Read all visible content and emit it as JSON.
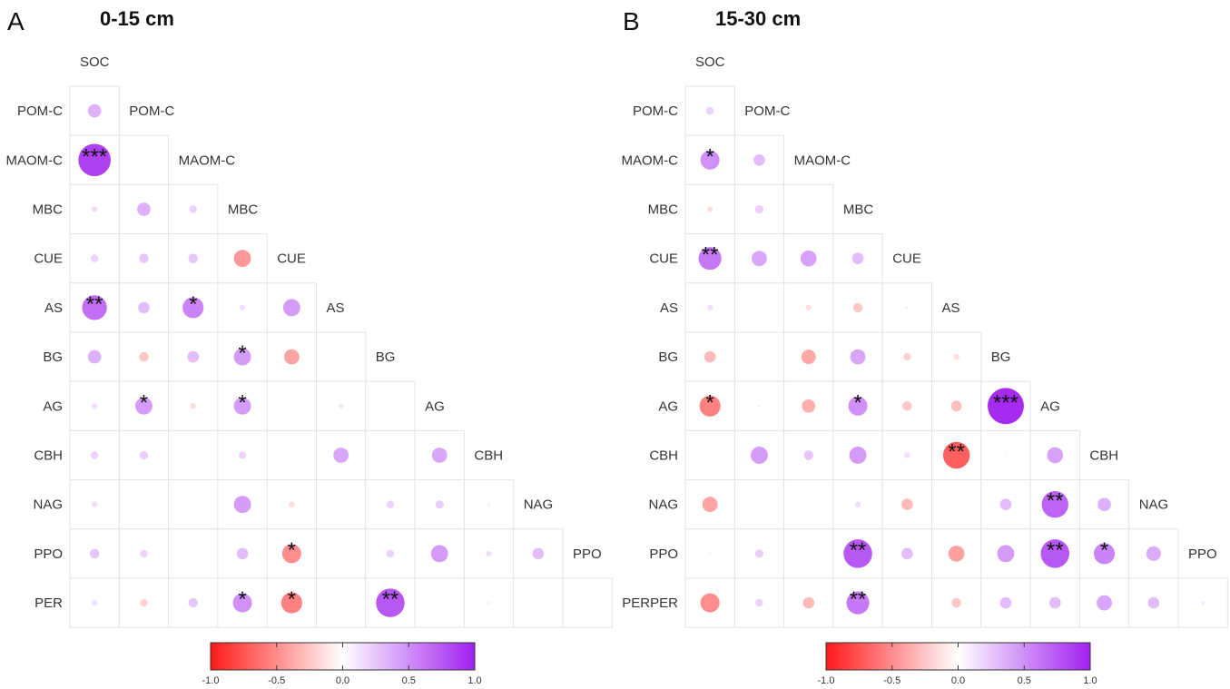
{
  "chart_data": [
    {
      "type": "heatmap",
      "panel": "A",
      "title": "0-15 cm",
      "variables": [
        "SOC",
        "POM-C",
        "MAOM-C",
        "MBC",
        "CUE",
        "AS",
        "BG",
        "AG",
        "CBH",
        "NAG",
        "PPO",
        "PER"
      ],
      "encoding": "lower-triangle correlation matrix; circle size and color show correlation r, stars show significance",
      "color_scale": {
        "min": -1.0,
        "max": 1.0,
        "ticks": [
          "-1.0",
          "-0.5",
          "0.0",
          "0.5",
          "1.0"
        ],
        "negative_color": "#ff1a1a",
        "zero_color": "#ffffff",
        "positive_color": "#a020f0"
      },
      "cells": [
        {
          "row": "POM-C",
          "col": "SOC",
          "r": 0.35,
          "sig": ""
        },
        {
          "row": "MAOM-C",
          "col": "SOC",
          "r": 0.85,
          "sig": "***"
        },
        {
          "row": "MAOM-C",
          "col": "POM-C",
          "r": 0.05,
          "sig": ""
        },
        {
          "row": "MBC",
          "col": "SOC",
          "r": 0.15,
          "sig": ""
        },
        {
          "row": "MBC",
          "col": "POM-C",
          "r": 0.35,
          "sig": ""
        },
        {
          "row": "MBC",
          "col": "MAOM-C",
          "r": 0.2,
          "sig": ""
        },
        {
          "row": "CUE",
          "col": "SOC",
          "r": 0.2,
          "sig": ""
        },
        {
          "row": "CUE",
          "col": "POM-C",
          "r": 0.25,
          "sig": ""
        },
        {
          "row": "CUE",
          "col": "MAOM-C",
          "r": 0.25,
          "sig": ""
        },
        {
          "row": "CUE",
          "col": "MBC",
          "r": -0.45,
          "sig": ""
        },
        {
          "row": "AS",
          "col": "SOC",
          "r": 0.65,
          "sig": "**"
        },
        {
          "row": "AS",
          "col": "POM-C",
          "r": 0.3,
          "sig": ""
        },
        {
          "row": "AS",
          "col": "MAOM-C",
          "r": 0.55,
          "sig": "*"
        },
        {
          "row": "AS",
          "col": "MBC",
          "r": 0.15,
          "sig": ""
        },
        {
          "row": "AS",
          "col": "CUE",
          "r": 0.45,
          "sig": ""
        },
        {
          "row": "BG",
          "col": "SOC",
          "r": 0.35,
          "sig": ""
        },
        {
          "row": "BG",
          "col": "POM-C",
          "r": -0.25,
          "sig": ""
        },
        {
          "row": "BG",
          "col": "MAOM-C",
          "r": 0.3,
          "sig": ""
        },
        {
          "row": "BG",
          "col": "MBC",
          "r": 0.45,
          "sig": "*"
        },
        {
          "row": "BG",
          "col": "CUE",
          "r": -0.4,
          "sig": ""
        },
        {
          "row": "AG",
          "col": "SOC",
          "r": 0.15,
          "sig": ""
        },
        {
          "row": "AG",
          "col": "POM-C",
          "r": 0.45,
          "sig": "*"
        },
        {
          "row": "AG",
          "col": "MAOM-C",
          "r": -0.15,
          "sig": ""
        },
        {
          "row": "AG",
          "col": "MBC",
          "r": 0.45,
          "sig": "*"
        },
        {
          "row": "AG",
          "col": "AS",
          "r": 0.12,
          "sig": ""
        },
        {
          "row": "AG",
          "col": "BG",
          "r": 0.05,
          "sig": ""
        },
        {
          "row": "CBH",
          "col": "SOC",
          "r": 0.2,
          "sig": ""
        },
        {
          "row": "CBH",
          "col": "POM-C",
          "r": 0.22,
          "sig": ""
        },
        {
          "row": "CBH",
          "col": "MBC",
          "r": 0.2,
          "sig": ""
        },
        {
          "row": "CBH",
          "col": "AS",
          "r": 0.4,
          "sig": ""
        },
        {
          "row": "CBH",
          "col": "AG",
          "r": 0.4,
          "sig": ""
        },
        {
          "row": "NAG",
          "col": "SOC",
          "r": 0.15,
          "sig": ""
        },
        {
          "row": "NAG",
          "col": "MBC",
          "r": 0.45,
          "sig": ""
        },
        {
          "row": "NAG",
          "col": "CUE",
          "r": -0.15,
          "sig": ""
        },
        {
          "row": "NAG",
          "col": "AS",
          "r": 0.05,
          "sig": ""
        },
        {
          "row": "NAG",
          "col": "BG",
          "r": 0.2,
          "sig": ""
        },
        {
          "row": "NAG",
          "col": "AG",
          "r": 0.22,
          "sig": ""
        },
        {
          "row": "NAG",
          "col": "CBH",
          "r": 0.08,
          "sig": ""
        },
        {
          "row": "PPO",
          "col": "SOC",
          "r": 0.25,
          "sig": ""
        },
        {
          "row": "PPO",
          "col": "POM-C",
          "r": 0.2,
          "sig": ""
        },
        {
          "row": "PPO",
          "col": "MAOM-C",
          "r": 0.05,
          "sig": ""
        },
        {
          "row": "PPO",
          "col": "MBC",
          "r": 0.3,
          "sig": ""
        },
        {
          "row": "PPO",
          "col": "CUE",
          "r": -0.5,
          "sig": "*"
        },
        {
          "row": "PPO",
          "col": "BG",
          "r": 0.2,
          "sig": ""
        },
        {
          "row": "PPO",
          "col": "AG",
          "r": 0.45,
          "sig": ""
        },
        {
          "row": "PPO",
          "col": "CBH",
          "r": 0.15,
          "sig": ""
        },
        {
          "row": "PPO",
          "col": "NAG",
          "r": 0.3,
          "sig": ""
        },
        {
          "row": "PER",
          "col": "SOC",
          "r": 0.15,
          "sig": ""
        },
        {
          "row": "PER",
          "col": "POM-C",
          "r": -0.2,
          "sig": ""
        },
        {
          "row": "PER",
          "col": "MAOM-C",
          "r": 0.25,
          "sig": ""
        },
        {
          "row": "PER",
          "col": "MBC",
          "r": 0.5,
          "sig": "*"
        },
        {
          "row": "PER",
          "col": "CUE",
          "r": -0.55,
          "sig": "*"
        },
        {
          "row": "PER",
          "col": "BG",
          "r": 0.75,
          "sig": "**"
        },
        {
          "row": "PER",
          "col": "CBH",
          "r": 0.08,
          "sig": ""
        },
        {
          "row": "PER",
          "col": "NAG",
          "r": 0.05,
          "sig": ""
        },
        {
          "row": "PER",
          "col": "PPO",
          "r": 0.03,
          "sig": ""
        }
      ]
    },
    {
      "type": "heatmap",
      "panel": "B",
      "title": "15-30 cm",
      "variables": [
        "SOC",
        "POM-C",
        "MAOM-C",
        "MBC",
        "CUE",
        "AS",
        "BG",
        "AG",
        "CBH",
        "NAG",
        "PPO",
        "PER"
      ],
      "encoding": "lower-triangle correlation matrix; circle size and color show correlation r, stars show significance",
      "color_scale": {
        "min": -1.0,
        "max": 1.0,
        "ticks": [
          "-1.0",
          "-0.5",
          "0.0",
          "0.5",
          "1.0"
        ],
        "negative_color": "#ff1a1a",
        "zero_color": "#ffffff",
        "positive_color": "#a020f0"
      },
      "cells": [
        {
          "row": "POM-C",
          "col": "SOC",
          "r": 0.2,
          "sig": ""
        },
        {
          "row": "MAOM-C",
          "col": "SOC",
          "r": 0.5,
          "sig": "*"
        },
        {
          "row": "MAOM-C",
          "col": "POM-C",
          "r": 0.3,
          "sig": ""
        },
        {
          "row": "MBC",
          "col": "SOC",
          "r": -0.15,
          "sig": ""
        },
        {
          "row": "MBC",
          "col": "POM-C",
          "r": 0.22,
          "sig": ""
        },
        {
          "row": "CUE",
          "col": "SOC",
          "r": 0.6,
          "sig": "**"
        },
        {
          "row": "CUE",
          "col": "POM-C",
          "r": 0.4,
          "sig": ""
        },
        {
          "row": "CUE",
          "col": "MAOM-C",
          "r": 0.42,
          "sig": ""
        },
        {
          "row": "CUE",
          "col": "MBC",
          "r": 0.3,
          "sig": ""
        },
        {
          "row": "AS",
          "col": "SOC",
          "r": 0.15,
          "sig": ""
        },
        {
          "row": "AS",
          "col": "MAOM-C",
          "r": -0.15,
          "sig": ""
        },
        {
          "row": "AS",
          "col": "MBC",
          "r": -0.25,
          "sig": ""
        },
        {
          "row": "AS",
          "col": "CUE",
          "r": -0.08,
          "sig": ""
        },
        {
          "row": "BG",
          "col": "SOC",
          "r": -0.3,
          "sig": ""
        },
        {
          "row": "BG",
          "col": "MAOM-C",
          "r": -0.38,
          "sig": ""
        },
        {
          "row": "BG",
          "col": "MBC",
          "r": 0.4,
          "sig": ""
        },
        {
          "row": "BG",
          "col": "CUE",
          "r": -0.2,
          "sig": ""
        },
        {
          "row": "BG",
          "col": "AS",
          "r": -0.15,
          "sig": ""
        },
        {
          "row": "AG",
          "col": "SOC",
          "r": -0.55,
          "sig": "*"
        },
        {
          "row": "AG",
          "col": "POM-C",
          "r": 0.08,
          "sig": ""
        },
        {
          "row": "AG",
          "col": "MAOM-C",
          "r": -0.35,
          "sig": ""
        },
        {
          "row": "AG",
          "col": "MBC",
          "r": 0.5,
          "sig": "*"
        },
        {
          "row": "AG",
          "col": "CUE",
          "r": -0.25,
          "sig": ""
        },
        {
          "row": "AG",
          "col": "AS",
          "r": -0.28,
          "sig": ""
        },
        {
          "row": "AG",
          "col": "BG",
          "r": 0.95,
          "sig": "***"
        },
        {
          "row": "CBH",
          "col": "SOC",
          "r": 0.03,
          "sig": ""
        },
        {
          "row": "CBH",
          "col": "POM-C",
          "r": 0.45,
          "sig": ""
        },
        {
          "row": "CBH",
          "col": "MAOM-C",
          "r": 0.25,
          "sig": ""
        },
        {
          "row": "CBH",
          "col": "MBC",
          "r": 0.45,
          "sig": ""
        },
        {
          "row": "CBH",
          "col": "CUE",
          "r": 0.15,
          "sig": ""
        },
        {
          "row": "CBH",
          "col": "AS",
          "r": -0.7,
          "sig": "**"
        },
        {
          "row": "CBH",
          "col": "BG",
          "r": 0.06,
          "sig": ""
        },
        {
          "row": "CBH",
          "col": "AG",
          "r": 0.42,
          "sig": ""
        },
        {
          "row": "NAG",
          "col": "SOC",
          "r": -0.4,
          "sig": ""
        },
        {
          "row": "NAG",
          "col": "MAOM-C",
          "r": 0.03,
          "sig": ""
        },
        {
          "row": "NAG",
          "col": "MBC",
          "r": 0.15,
          "sig": ""
        },
        {
          "row": "NAG",
          "col": "CUE",
          "r": -0.3,
          "sig": ""
        },
        {
          "row": "NAG",
          "col": "BG",
          "r": 0.3,
          "sig": ""
        },
        {
          "row": "NAG",
          "col": "AG",
          "r": 0.7,
          "sig": "**"
        },
        {
          "row": "NAG",
          "col": "CBH",
          "r": 0.35,
          "sig": ""
        },
        {
          "row": "PPO",
          "col": "SOC",
          "r": -0.06,
          "sig": ""
        },
        {
          "row": "PPO",
          "col": "POM-C",
          "r": 0.22,
          "sig": ""
        },
        {
          "row": "PPO",
          "col": "MAOM-C",
          "r": 0.03,
          "sig": ""
        },
        {
          "row": "PPO",
          "col": "MBC",
          "r": 0.75,
          "sig": "**"
        },
        {
          "row": "PPO",
          "col": "CUE",
          "r": 0.3,
          "sig": ""
        },
        {
          "row": "PPO",
          "col": "AS",
          "r": -0.42,
          "sig": ""
        },
        {
          "row": "PPO",
          "col": "BG",
          "r": 0.45,
          "sig": ""
        },
        {
          "row": "PPO",
          "col": "AG",
          "r": 0.75,
          "sig": "**"
        },
        {
          "row": "PPO",
          "col": "CBH",
          "r": 0.55,
          "sig": "*"
        },
        {
          "row": "PPO",
          "col": "NAG",
          "r": 0.38,
          "sig": ""
        },
        {
          "row": "PER",
          "col": "SOC",
          "r": -0.5,
          "sig": ""
        },
        {
          "row": "PER",
          "col": "POM-C",
          "r": 0.2,
          "sig": ""
        },
        {
          "row": "PER",
          "col": "MAOM-C",
          "r": -0.3,
          "sig": ""
        },
        {
          "row": "PER",
          "col": "MBC",
          "r": 0.6,
          "sig": "**"
        },
        {
          "row": "PER",
          "col": "CUE",
          "r": 0.04,
          "sig": ""
        },
        {
          "row": "PER",
          "col": "AS",
          "r": -0.25,
          "sig": ""
        },
        {
          "row": "PER",
          "col": "BG",
          "r": 0.3,
          "sig": ""
        },
        {
          "row": "PER",
          "col": "AG",
          "r": 0.3,
          "sig": ""
        },
        {
          "row": "PER",
          "col": "CBH",
          "r": 0.4,
          "sig": ""
        },
        {
          "row": "PER",
          "col": "NAG",
          "r": 0.3,
          "sig": ""
        },
        {
          "row": "PER",
          "col": "PPO",
          "r": 0.1,
          "sig": ""
        }
      ]
    }
  ]
}
